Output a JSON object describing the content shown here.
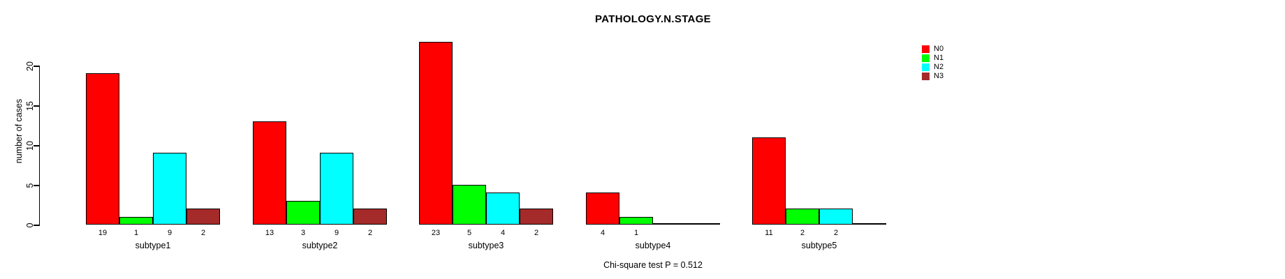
{
  "chart_data": {
    "type": "bar",
    "title": "PATHOLOGY.N.STAGE",
    "ylabel": "number of cases",
    "xlabel": "",
    "categories": [
      "subtype1",
      "subtype2",
      "subtype3",
      "subtype4",
      "subtype5"
    ],
    "series": [
      {
        "name": "N0",
        "color": "#FF0000",
        "values": [
          19,
          13,
          23,
          4,
          11
        ]
      },
      {
        "name": "N1",
        "color": "#00FF00",
        "values": [
          1,
          3,
          5,
          1,
          2
        ]
      },
      {
        "name": "N2",
        "color": "#00FFFF",
        "values": [
          9,
          9,
          4,
          0,
          2
        ]
      },
      {
        "name": "N3",
        "color": "#A52A2A",
        "values": [
          2,
          2,
          2,
          0,
          0
        ]
      }
    ],
    "yticks": [
      0,
      5,
      10,
      15,
      20
    ],
    "ylim": [
      0,
      23
    ],
    "grid": false,
    "legend": {
      "position": "right-outside",
      "entries": [
        "N0",
        "N1",
        "N2",
        "N3"
      ]
    },
    "annotation": "Chi-square test P = 0.512",
    "value_label_rule": "shown under each bar only when value > 0",
    "axis_color": "#000000",
    "background": "#FFFFFF"
  }
}
